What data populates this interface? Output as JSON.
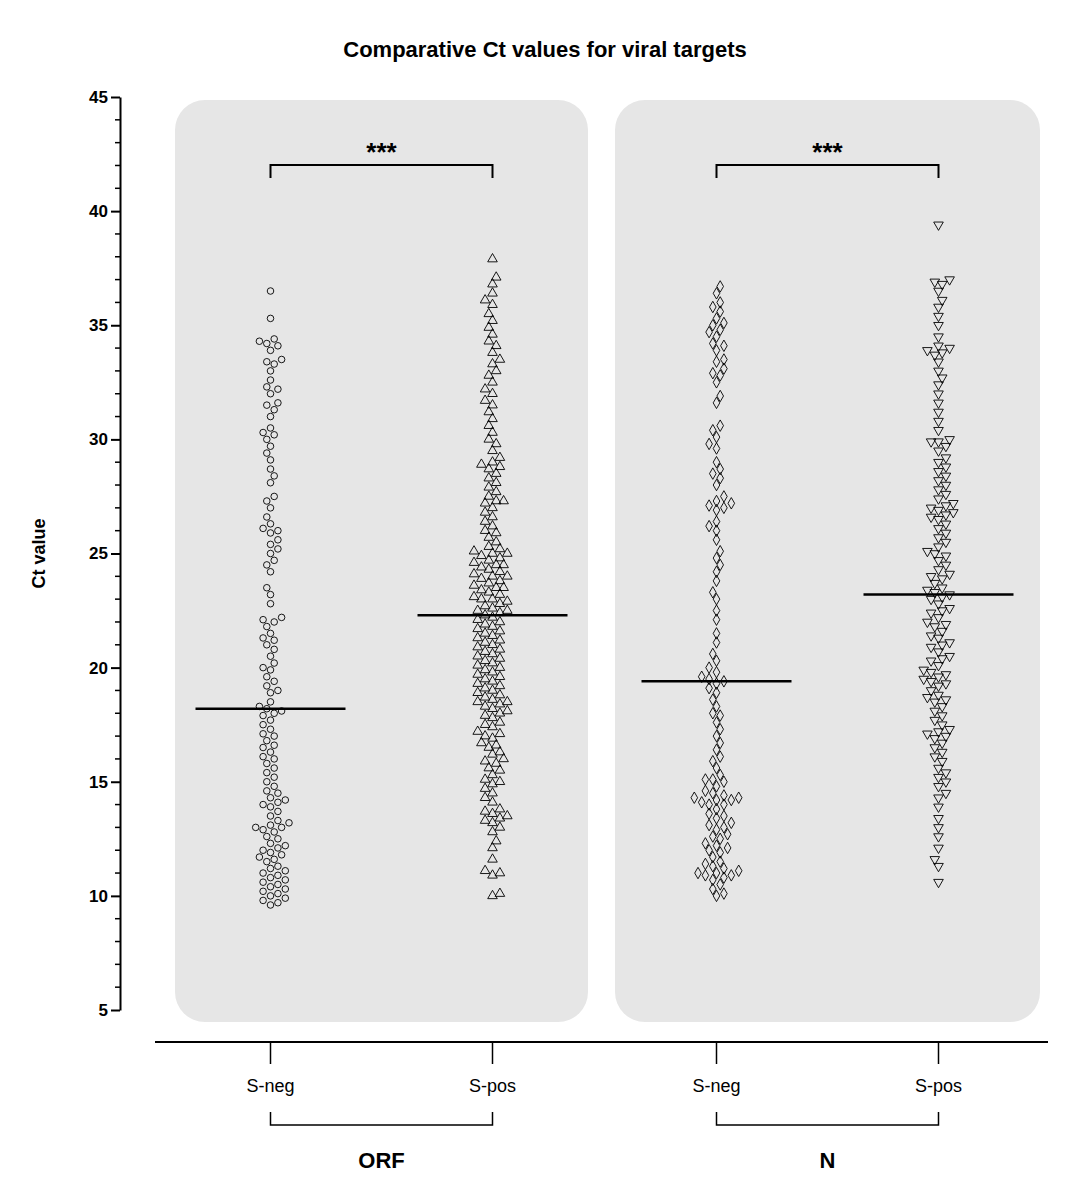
{
  "chart_data": {
    "type": "dot_plot",
    "title": "Comparative Ct values for viral targets",
    "y_label": "Ct value",
    "ylim": [
      5,
      45
    ],
    "yticks": [
      5,
      10,
      15,
      20,
      25,
      30,
      35,
      40,
      45
    ],
    "yticks_minor": [
      6,
      7,
      8,
      9,
      11,
      12,
      13,
      14,
      16,
      17,
      18,
      19,
      21,
      22,
      23,
      24,
      26,
      27,
      28,
      29,
      31,
      32,
      33,
      34,
      36,
      37,
      38,
      39,
      41,
      42,
      43,
      44
    ],
    "color": "#000000",
    "panels": [
      {
        "label": "ORF",
        "annotation": "***",
        "categories": [
          "S-neg",
          "S-pos"
        ],
        "series": [
          {
            "marker": "circle",
            "median": 18.2,
            "values": [
              9.6,
              9.7,
              9.8,
              9.9,
              10.0,
              10.1,
              10.2,
              10.3,
              10.4,
              10.5,
              10.6,
              10.7,
              10.8,
              10.9,
              11.0,
              11.1,
              11.2,
              11.3,
              11.5,
              11.6,
              11.7,
              11.8,
              11.9,
              12.0,
              12.1,
              12.2,
              12.3,
              12.5,
              12.6,
              12.8,
              12.9,
              13.0,
              13.0,
              13.1,
              13.2,
              13.3,
              13.5,
              13.7,
              13.9,
              14.0,
              14.1,
              14.2,
              14.3,
              14.5,
              14.6,
              14.8,
              15.0,
              15.2,
              15.4,
              15.6,
              15.8,
              16.0,
              16.1,
              16.3,
              16.5,
              16.6,
              16.8,
              17.0,
              17.1,
              17.3,
              17.5,
              17.7,
              17.9,
              18.0,
              18.1,
              18.2,
              18.3,
              18.5,
              18.9,
              19.0,
              19.2,
              19.4,
              19.6,
              19.9,
              20.0,
              20.2,
              20.5,
              20.8,
              21.0,
              21.2,
              21.3,
              21.5,
              21.8,
              22.0,
              22.1,
              22.2,
              22.8,
              23.2,
              23.5,
              24.2,
              24.5,
              24.7,
              25.0,
              25.2,
              25.4,
              25.6,
              25.9,
              26.0,
              26.1,
              26.3,
              26.6,
              27.0,
              27.3,
              27.5,
              28.1,
              28.4,
              28.7,
              29.1,
              29.4,
              29.7,
              30.0,
              30.2,
              30.3,
              30.5,
              31.0,
              31.3,
              31.5,
              31.6,
              32.0,
              32.2,
              32.3,
              32.6,
              33.0,
              33.3,
              33.4,
              33.5,
              33.9,
              34.1,
              34.2,
              34.3,
              34.4,
              35.3,
              36.5
            ]
          },
          {
            "marker": "triangle-up",
            "median": 22.3,
            "values": [
              10.0,
              10.1,
              10.9,
              11.0,
              11.1,
              11.6,
              12.1,
              12.4,
              12.8,
              13.0,
              13.2,
              13.3,
              13.4,
              13.5,
              13.6,
              13.7,
              13.8,
              14.1,
              14.3,
              14.5,
              14.7,
              14.9,
              15.0,
              15.1,
              15.3,
              15.5,
              15.6,
              15.8,
              15.9,
              16.0,
              16.2,
              16.3,
              16.5,
              16.6,
              16.7,
              16.9,
              17.0,
              17.1,
              17.2,
              17.4,
              17.5,
              17.6,
              17.8,
              17.9,
              18.0,
              18.1,
              18.2,
              18.3,
              18.4,
              18.5,
              18.5,
              18.6,
              18.7,
              18.8,
              18.9,
              19.0,
              19.1,
              19.2,
              19.3,
              19.4,
              19.5,
              19.6,
              19.7,
              19.8,
              19.9,
              20.0,
              20.1,
              20.2,
              20.3,
              20.4,
              20.5,
              20.6,
              20.7,
              20.8,
              20.9,
              21.0,
              21.1,
              21.2,
              21.3,
              21.4,
              21.5,
              21.6,
              21.7,
              21.8,
              21.9,
              22.0,
              22.1,
              22.2,
              22.3,
              22.4,
              22.5,
              22.5,
              22.6,
              22.7,
              22.8,
              22.9,
              23.0,
              23.0,
              23.1,
              23.2,
              23.3,
              23.4,
              23.5,
              23.5,
              23.6,
              23.7,
              23.8,
              23.9,
              24.0,
              24.0,
              24.1,
              24.2,
              24.3,
              24.4,
              24.5,
              24.5,
              24.6,
              24.7,
              24.8,
              24.9,
              25.0,
              25.0,
              25.1,
              25.2,
              25.3,
              25.5,
              25.7,
              25.9,
              26.0,
              26.2,
              26.4,
              26.6,
              26.8,
              27.0,
              27.2,
              27.3,
              27.3,
              27.5,
              27.7,
              27.9,
              28.1,
              28.3,
              28.5,
              28.7,
              28.8,
              28.9,
              29.0,
              29.2,
              29.5,
              29.8,
              30.0,
              30.3,
              30.6,
              30.9,
              31.2,
              31.5,
              31.7,
              32.0,
              32.2,
              32.5,
              32.8,
              33.0,
              33.3,
              33.5,
              33.8,
              34.1,
              34.3,
              34.6,
              34.9,
              35.2,
              35.5,
              35.9,
              36.1,
              36.4,
              36.8,
              37.1,
              37.9
            ]
          }
        ]
      },
      {
        "label": "N",
        "annotation": "***",
        "categories": [
          "S-neg",
          "S-pos"
        ],
        "series": [
          {
            "marker": "diamond",
            "median": 19.4,
            "values": [
              10.0,
              10.1,
              10.3,
              10.5,
              10.7,
              10.8,
              10.9,
              10.9,
              11.0,
              11.0,
              11.1,
              11.2,
              11.3,
              11.4,
              11.5,
              11.7,
              11.9,
              12.0,
              12.1,
              12.2,
              12.3,
              12.5,
              12.6,
              12.7,
              12.9,
              13.0,
              13.1,
              13.2,
              13.4,
              13.5,
              13.6,
              13.8,
              14.0,
              14.0,
              14.1,
              14.2,
              14.2,
              14.3,
              14.3,
              14.4,
              14.5,
              14.6,
              14.8,
              15.0,
              15.1,
              15.1,
              15.3,
              15.6,
              15.9,
              16.1,
              16.4,
              16.7,
              17.0,
              17.3,
              17.6,
              17.9,
              18.0,
              18.3,
              18.6,
              18.9,
              19.1,
              19.3,
              19.4,
              19.5,
              19.6,
              19.8,
              20.0,
              20.3,
              20.6,
              21.1,
              21.5,
              22.1,
              22.5,
              23.0,
              23.3,
              23.8,
              24.2,
              24.5,
              24.8,
              25.1,
              25.6,
              26.0,
              26.2,
              26.4,
              26.9,
              27.0,
              27.1,
              27.2,
              27.3,
              27.5,
              28.0,
              28.3,
              28.5,
              28.7,
              29.0,
              29.6,
              29.8,
              30.1,
              30.4,
              30.6,
              31.6,
              31.9,
              32.5,
              32.8,
              32.9,
              33.1,
              33.4,
              33.5,
              33.9,
              34.1,
              34.2,
              34.5,
              34.7,
              34.8,
              35.0,
              35.1,
              35.3,
              35.6,
              35.8,
              36.0,
              36.4,
              36.7
            ]
          },
          {
            "marker": "triangle-down",
            "median": 23.2,
            "values": [
              10.6,
              11.3,
              11.6,
              12.1,
              12.6,
              13.0,
              13.4,
              13.9,
              14.3,
              14.5,
              14.8,
              15.0,
              15.2,
              15.4,
              15.6,
              15.9,
              16.1,
              16.3,
              16.5,
              16.7,
              16.9,
              17.0,
              17.1,
              17.2,
              17.3,
              17.5,
              17.7,
              17.9,
              18.1,
              18.3,
              18.5,
              18.6,
              18.7,
              18.8,
              19.0,
              19.2,
              19.3,
              19.4,
              19.5,
              19.6,
              19.7,
              19.8,
              19.9,
              20.1,
              20.3,
              20.4,
              20.5,
              20.7,
              20.9,
              21.0,
              21.1,
              21.3,
              21.4,
              21.6,
              21.8,
              21.9,
              22.0,
              22.2,
              22.4,
              22.5,
              22.6,
              22.8,
              23.0,
              23.1,
              23.2,
              23.3,
              23.4,
              23.5,
              23.7,
              23.9,
              24.0,
              24.1,
              24.3,
              24.5,
              24.7,
              24.9,
              25.0,
              25.1,
              25.3,
              25.5,
              25.7,
              25.9,
              26.1,
              26.3,
              26.5,
              26.6,
              26.7,
              26.8,
              26.9,
              27.0,
              27.1,
              27.2,
              27.4,
              27.6,
              27.8,
              28.0,
              28.2,
              28.4,
              28.6,
              28.8,
              29.0,
              29.2,
              29.5,
              29.7,
              29.9,
              29.9,
              30.0,
              30.4,
              30.8,
              31.2,
              31.6,
              32.0,
              32.4,
              32.7,
              33.0,
              33.4,
              33.7,
              33.8,
              33.9,
              34.0,
              34.1,
              34.5,
              35.0,
              35.4,
              35.8,
              36.1,
              36.5,
              36.8,
              36.9,
              37.0,
              39.4
            ]
          }
        ]
      }
    ]
  }
}
